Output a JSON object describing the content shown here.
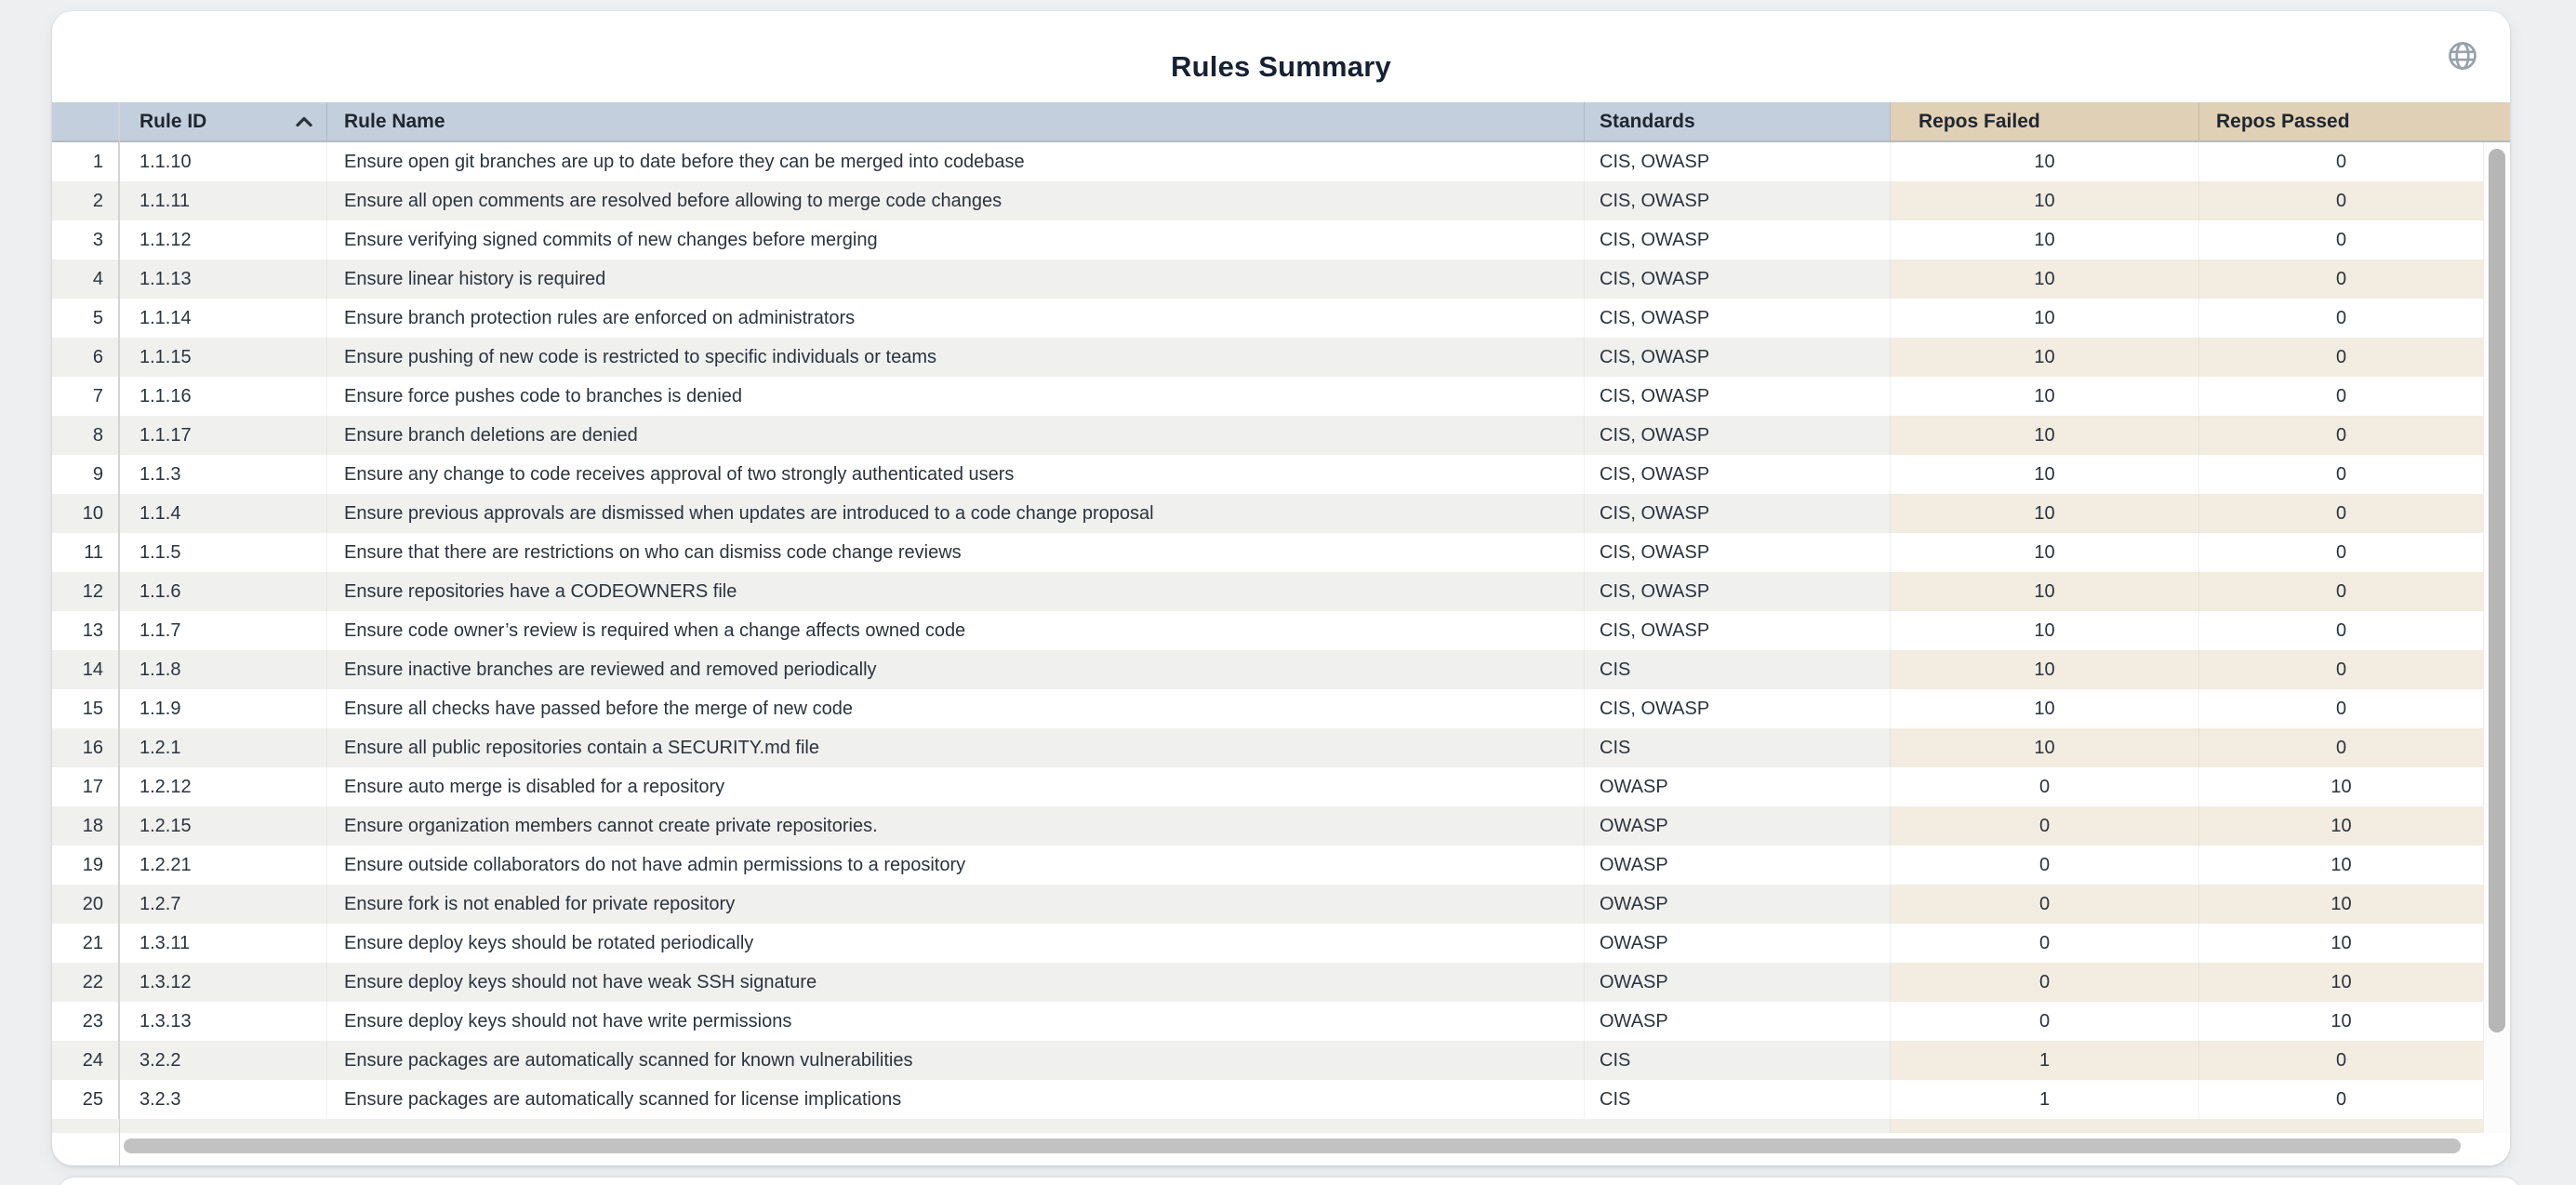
{
  "card": {
    "title": "Rules Summary",
    "globe_icon": "globe-icon"
  },
  "colors": {
    "page_background": "#edeff1",
    "card_background": "#ffffff",
    "header_blue": "#c3cfdc",
    "header_tan": "#e0d0b5",
    "stripe_gray": "#f0f0ef",
    "stripe_tan": "#f2ece1",
    "title_text": "#162234",
    "body_text": "#2c333c",
    "scrollbar_thumb": "#c2c2c2"
  },
  "table": {
    "columns": [
      {
        "key": "index",
        "label": "",
        "group": "blue"
      },
      {
        "key": "rule_id",
        "label": "Rule ID",
        "group": "blue",
        "sort": "asc"
      },
      {
        "key": "rule_name",
        "label": "Rule Name",
        "group": "blue"
      },
      {
        "key": "standards",
        "label": "Standards",
        "group": "blue"
      },
      {
        "key": "repos_failed",
        "label": "Repos Failed",
        "group": "tan"
      },
      {
        "key": "repos_passed",
        "label": "Repos Passed",
        "group": "tan"
      }
    ],
    "rows": [
      [
        1,
        "1.1.10",
        "Ensure open git branches are up to date before they can be merged into codebase",
        "CIS, OWASP",
        10,
        0
      ],
      [
        2,
        "1.1.11",
        "Ensure all open comments are resolved before allowing to merge code changes",
        "CIS, OWASP",
        10,
        0
      ],
      [
        3,
        "1.1.12",
        "Ensure verifying signed commits of new changes before merging",
        "CIS, OWASP",
        10,
        0
      ],
      [
        4,
        "1.1.13",
        "Ensure linear history is required",
        "CIS, OWASP",
        10,
        0
      ],
      [
        5,
        "1.1.14",
        "Ensure branch protection rules are enforced on administrators",
        "CIS, OWASP",
        10,
        0
      ],
      [
        6,
        "1.1.15",
        "Ensure pushing of new code is restricted to specific individuals or teams",
        "CIS, OWASP",
        10,
        0
      ],
      [
        7,
        "1.1.16",
        "Ensure force pushes code to branches is denied",
        "CIS, OWASP",
        10,
        0
      ],
      [
        8,
        "1.1.17",
        "Ensure branch deletions are denied",
        "CIS, OWASP",
        10,
        0
      ],
      [
        9,
        "1.1.3",
        "Ensure any change to code receives approval of two strongly authenticated users",
        "CIS, OWASP",
        10,
        0
      ],
      [
        10,
        "1.1.4",
        "Ensure previous approvals are dismissed when updates are introduced to a code change proposal",
        "CIS, OWASP",
        10,
        0
      ],
      [
        11,
        "1.1.5",
        "Ensure that there are restrictions on who can dismiss code change reviews",
        "CIS, OWASP",
        10,
        0
      ],
      [
        12,
        "1.1.6",
        "Ensure repositories have a CODEOWNERS file",
        "CIS, OWASP",
        10,
        0
      ],
      [
        13,
        "1.1.7",
        "Ensure code owner’s review is required when a change affects owned code",
        "CIS, OWASP",
        10,
        0
      ],
      [
        14,
        "1.1.8",
        "Ensure inactive branches are reviewed and removed periodically",
        "CIS",
        10,
        0
      ],
      [
        15,
        "1.1.9",
        "Ensure all checks have passed before the merge of new code",
        "CIS, OWASP",
        10,
        0
      ],
      [
        16,
        "1.2.1",
        "Ensure all public repositories contain a SECURITY.md file",
        "CIS",
        10,
        0
      ],
      [
        17,
        "1.2.12",
        "Ensure auto merge is disabled for a repository",
        "OWASP",
        0,
        10
      ],
      [
        18,
        "1.2.15",
        "Ensure organization members cannot create private repositories.",
        "OWASP",
        0,
        10
      ],
      [
        19,
        "1.2.21",
        "Ensure outside collaborators do not have admin permissions to a repository",
        "OWASP",
        0,
        10
      ],
      [
        20,
        "1.2.7",
        "Ensure fork is not enabled for private repository",
        "OWASP",
        0,
        10
      ],
      [
        21,
        "1.3.11",
        "Ensure deploy keys should be rotated periodically",
        "OWASP",
        0,
        10
      ],
      [
        22,
        "1.3.12",
        "Ensure deploy keys should not have weak SSH signature",
        "OWASP",
        0,
        10
      ],
      [
        23,
        "1.3.13",
        "Ensure deploy keys should not have write permissions",
        "OWASP",
        0,
        10
      ],
      [
        24,
        "3.2.2",
        "Ensure packages are automatically scanned for known vulnerabilities",
        "CIS",
        1,
        0
      ],
      [
        25,
        "3.2.3",
        "Ensure packages are automatically scanned for license implications",
        "CIS",
        1,
        0
      ]
    ]
  }
}
